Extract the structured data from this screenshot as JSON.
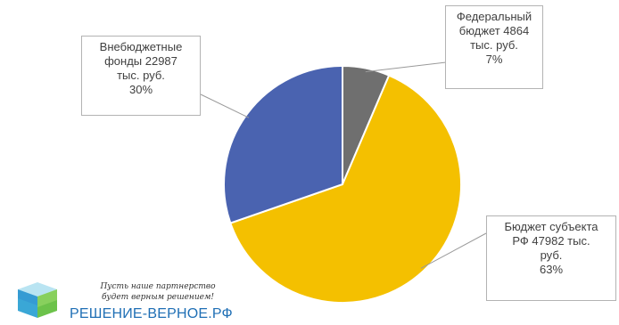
{
  "chart_data": {
    "type": "pie",
    "title": "",
    "slices": [
      {
        "name": "Федеральный бюджет",
        "value": 4864,
        "percent": 7,
        "color": "#6f6f6f",
        "label_lines": [
          "Федеральный",
          "бюджет 4864",
          "тыс. руб.",
          "7%"
        ]
      },
      {
        "name": "Бюджет субъекта РФ",
        "value": 47982,
        "percent": 63,
        "color": "#f4c000",
        "label_lines": [
          "Бюджет субъекта",
          "РФ 47982 тыс.",
          "руб.",
          "63%"
        ]
      },
      {
        "name": "Внебюджетные фонды",
        "value": 22987,
        "percent": 30,
        "color": "#4a63b0",
        "label_lines": [
          "Внебюджетные",
          "фонды 22987",
          "тыс. руб.",
          "30%"
        ]
      }
    ],
    "start_angle_deg": 0,
    "direction": "clockwise",
    "legend": "none",
    "labels": "callouts with leader lines"
  },
  "logo": {
    "slogan_line1": "Пусть наше партнерство",
    "slogan_line2": "будет верным решением!",
    "name": "РЕШЕНИЕ-ВЕРНОЕ.РФ",
    "name_color": "#1f6fb5"
  }
}
